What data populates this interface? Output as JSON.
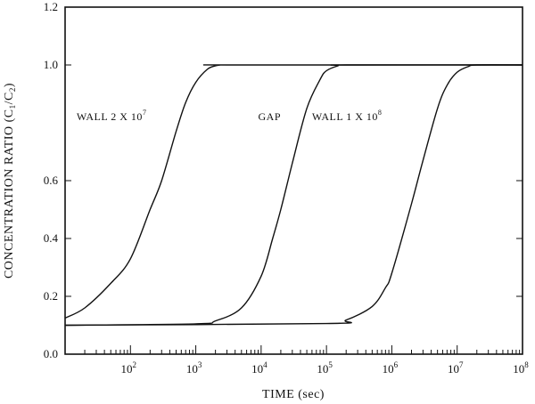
{
  "chart_data": {
    "type": "line",
    "x_scale": "log",
    "xlim": [
      10,
      100000000
    ],
    "ylim": [
      0.0,
      1.2
    ],
    "grid": false,
    "legend": "none",
    "xlabel": "TIME  (sec)",
    "ylabel": "CONCENTRATION RATIO  (C₁/C₂)",
    "ylabel_parts": {
      "prefix": "CONCENTRATION RATIO  (C",
      "sub1": "1",
      "mid": "/C",
      "sub2": "2",
      "suffix": ")"
    },
    "x_ticks": [
      {
        "value": 100,
        "base": "10",
        "exp": "2"
      },
      {
        "value": 1000,
        "base": "10",
        "exp": "3"
      },
      {
        "value": 10000,
        "base": "10",
        "exp": "4"
      },
      {
        "value": 100000,
        "base": "10",
        "exp": "5"
      },
      {
        "value": 1000000,
        "base": "10",
        "exp": "6"
      },
      {
        "value": 10000000,
        "base": "10",
        "exp": "7"
      },
      {
        "value": 100000000,
        "base": "10",
        "exp": "8"
      }
    ],
    "y_ticks": [
      {
        "value": 0.0,
        "label": "0.0"
      },
      {
        "value": 0.2,
        "label": "0.2"
      },
      {
        "value": 0.4,
        "label": "0.4"
      },
      {
        "value": 0.6,
        "label": "0.6"
      },
      {
        "value": 1.0,
        "label": "1.0"
      },
      {
        "value": 1.2,
        "label": "1.2"
      }
    ],
    "series": [
      {
        "x": [
          10,
          20,
          50,
          100,
          200,
          300,
          500,
          700,
          1000,
          1500,
          2000,
          2500,
          3000,
          100000000
        ],
        "y": [
          0.125,
          0.16,
          0.245,
          0.33,
          0.5,
          0.6,
          0.77,
          0.87,
          0.94,
          0.985,
          0.997,
          1.0,
          1.0,
          1.0
        ]
      },
      {
        "x": [
          10,
          1000,
          2000,
          5000,
          10000,
          15000,
          20000,
          30000,
          50000,
          80000,
          100000,
          150000,
          200000,
          100000000
        ],
        "y": [
          0.1,
          0.105,
          0.115,
          0.16,
          0.27,
          0.4,
          0.5,
          0.66,
          0.85,
          0.95,
          0.98,
          0.997,
          1.0,
          1.0
        ]
      },
      {
        "x": [
          10,
          100000,
          200000,
          500000,
          800000,
          1000000,
          2000000,
          3000000,
          5000000,
          7000000,
          10000000,
          15000000,
          20000000,
          100000000
        ],
        "y": [
          0.1,
          0.106,
          0.118,
          0.165,
          0.23,
          0.28,
          0.52,
          0.67,
          0.85,
          0.93,
          0.975,
          0.995,
          1.0,
          1.0
        ]
      }
    ],
    "annotations": [
      {
        "text": "WALL   2 X 10",
        "sup": "7",
        "x": 15,
        "y": 0.81
      },
      {
        "text": "GAP",
        "sup": "",
        "x": 9000,
        "y": 0.81
      },
      {
        "text": "WALL   1 X 10",
        "sup": "8",
        "x": 60000,
        "y": 0.81
      }
    ]
  }
}
